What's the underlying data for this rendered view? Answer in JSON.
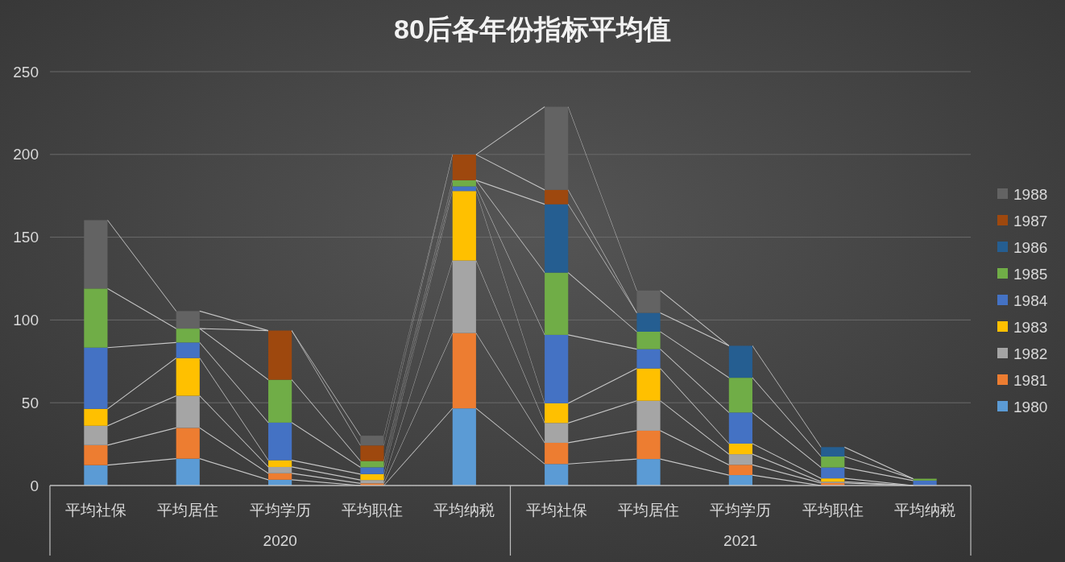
{
  "chart_data": {
    "type": "bar",
    "title": "80后各年份指标平均值",
    "stacked": true,
    "grid": "y",
    "legend": "right",
    "categories": [
      "平均社保",
      "平均居住",
      "平均学历",
      "平均职住",
      "平均纳税",
      "平均社保",
      "平均居住",
      "平均学历",
      "平均职住",
      "平均纳税"
    ],
    "annotations": [
      "2020",
      "2021"
    ],
    "ylim": [
      0,
      250
    ],
    "yticks": [
      0,
      50,
      100,
      150,
      200,
      250
    ],
    "series": [
      {
        "name": "1980",
        "color": "#5b9bd5",
        "values": [
          12.3,
          16.2,
          3.5,
          null,
          46.6,
          13.0,
          16.0,
          6.3,
          null,
          0
        ]
      },
      {
        "name": "1981",
        "color": "#ed7d31",
        "values": [
          12.1,
          18.6,
          3.9,
          1.3,
          45.5,
          12.8,
          17.1,
          6.2,
          1.5,
          0
        ]
      },
      {
        "name": "1982",
        "color": "#a5a5a5",
        "values": [
          11.7,
          19.4,
          3.8,
          2.0,
          43.8,
          12.0,
          18.1,
          6.4,
          0.8,
          0
        ]
      },
      {
        "name": "1983",
        "color": "#ffc000",
        "values": [
          10.2,
          22.8,
          4.1,
          3.6,
          42.0,
          11.9,
          19.5,
          6.4,
          2.0,
          0
        ]
      },
      {
        "name": "1984",
        "color": "#4472c4",
        "values": [
          37.0,
          9.4,
          22.7,
          4.1,
          2.8,
          41.3,
          11.7,
          18.8,
          6.6,
          3.0
        ]
      },
      {
        "name": "1985",
        "color": "#70ad47",
        "values": [
          35.7,
          8.4,
          25.9,
          3.8,
          3.7,
          37.6,
          10.5,
          21.0,
          6.6,
          1.1
        ]
      },
      {
        "name": "1986",
        "color": "#255e91",
        "values": [
          0,
          0,
          0,
          0,
          0,
          41.3,
          11.4,
          19.3,
          5.7,
          0
        ]
      },
      {
        "name": "1987",
        "color": "#9e480e",
        "values": [
          0,
          0,
          29.7,
          9.4,
          15.5,
          8.7,
          0,
          0,
          0,
          0
        ]
      },
      {
        "name": "1988",
        "color": "#636363",
        "values": [
          41.3,
          10.6,
          0,
          5.9,
          0,
          50.2,
          13.5,
          0,
          0,
          0
        ]
      }
    ]
  }
}
